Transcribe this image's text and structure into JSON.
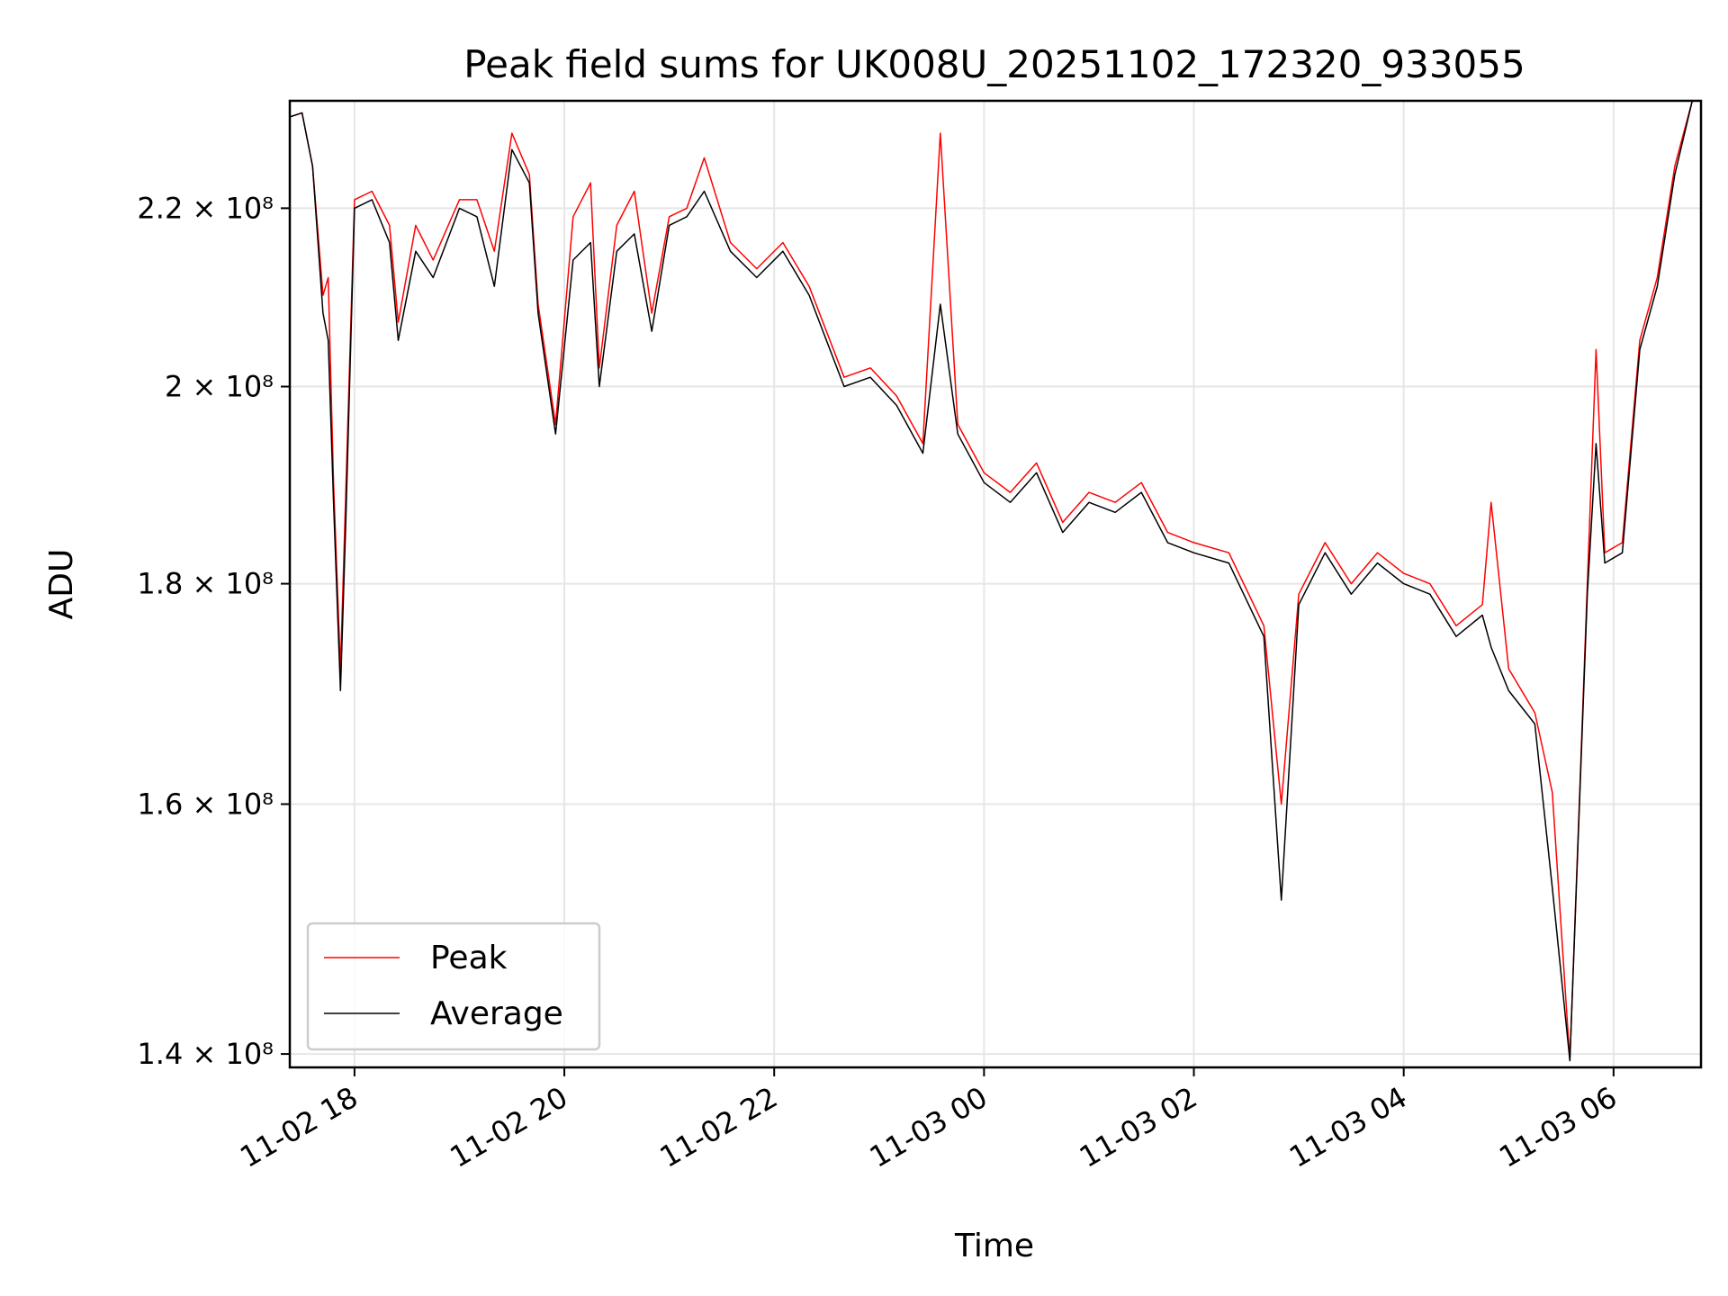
{
  "chart_data": {
    "type": "line",
    "title": "Peak field sums for UK008U_20251102_172320_933055",
    "xlabel": "Time",
    "ylabel": "ADU",
    "y_scale": "log",
    "xlim": [
      "2025-11-02 17:23",
      "2025-11-03 06:50"
    ],
    "ylim": [
      139000000,
      233000000
    ],
    "grid": true,
    "legend_position": "lower-left",
    "x_ticks": [
      {
        "value": "2025-11-02 18:00",
        "label": "11-02 18"
      },
      {
        "value": "2025-11-02 20:00",
        "label": "11-02 20"
      },
      {
        "value": "2025-11-02 22:00",
        "label": "11-02 22"
      },
      {
        "value": "2025-11-03 00:00",
        "label": "11-03 00"
      },
      {
        "value": "2025-11-03 02:00",
        "label": "11-03 02"
      },
      {
        "value": "2025-11-03 04:00",
        "label": "11-03 04"
      },
      {
        "value": "2025-11-03 06:00",
        "label": "11-03 06"
      }
    ],
    "y_ticks": [
      {
        "value": 140000000,
        "label": "1.4 × 10⁸"
      },
      {
        "value": 160000000,
        "label": "1.6 × 10⁸"
      },
      {
        "value": 180000000,
        "label": "1.8 × 10⁸"
      },
      {
        "value": 200000000,
        "label": "2 × 10⁸"
      },
      {
        "value": 220000000,
        "label": "2.2 × 10⁸"
      }
    ],
    "series": [
      {
        "name": "Peak",
        "color": "#ff0000",
        "points": [
          [
            "2025-11-02 17:23",
            231000000
          ],
          [
            "2025-11-02 17:30",
            231500000
          ],
          [
            "2025-11-02 17:36",
            225000000
          ],
          [
            "2025-11-02 17:42",
            210000000
          ],
          [
            "2025-11-02 17:45",
            212000000
          ],
          [
            "2025-11-02 17:48",
            190000000
          ],
          [
            "2025-11-02 17:52",
            172000000
          ],
          [
            "2025-11-02 17:55",
            189000000
          ],
          [
            "2025-11-02 18:00",
            221000000
          ],
          [
            "2025-11-02 18:10",
            222000000
          ],
          [
            "2025-11-02 18:20",
            218000000
          ],
          [
            "2025-11-02 18:25",
            207000000
          ],
          [
            "2025-11-02 18:35",
            218000000
          ],
          [
            "2025-11-02 18:45",
            214000000
          ],
          [
            "2025-11-02 19:00",
            221000000
          ],
          [
            "2025-11-02 19:10",
            221000000
          ],
          [
            "2025-11-02 19:20",
            215000000
          ],
          [
            "2025-11-02 19:30",
            229000000
          ],
          [
            "2025-11-02 19:40",
            224000000
          ],
          [
            "2025-11-02 19:45",
            209000000
          ],
          [
            "2025-11-02 19:55",
            196000000
          ],
          [
            "2025-11-02 20:05",
            219000000
          ],
          [
            "2025-11-02 20:15",
            223000000
          ],
          [
            "2025-11-02 20:20",
            202000000
          ],
          [
            "2025-11-02 20:30",
            218000000
          ],
          [
            "2025-11-02 20:40",
            222000000
          ],
          [
            "2025-11-02 20:50",
            208000000
          ],
          [
            "2025-11-02 21:00",
            219000000
          ],
          [
            "2025-11-02 21:10",
            220000000
          ],
          [
            "2025-11-02 21:20",
            226000000
          ],
          [
            "2025-11-02 21:35",
            216000000
          ],
          [
            "2025-11-02 21:50",
            213000000
          ],
          [
            "2025-11-02 22:05",
            216000000
          ],
          [
            "2025-11-02 22:20",
            211000000
          ],
          [
            "2025-11-02 22:40",
            201000000
          ],
          [
            "2025-11-02 22:55",
            202000000
          ],
          [
            "2025-11-02 23:10",
            199000000
          ],
          [
            "2025-11-02 23:25",
            194000000
          ],
          [
            "2025-11-02 23:35",
            229000000
          ],
          [
            "2025-11-02 23:45",
            196000000
          ],
          [
            "2025-11-03 00:00",
            191000000
          ],
          [
            "2025-11-03 00:15",
            189000000
          ],
          [
            "2025-11-03 00:30",
            192000000
          ],
          [
            "2025-11-03 00:45",
            186000000
          ],
          [
            "2025-11-03 01:00",
            189000000
          ],
          [
            "2025-11-03 01:15",
            188000000
          ],
          [
            "2025-11-03 01:30",
            190000000
          ],
          [
            "2025-11-03 01:45",
            185000000
          ],
          [
            "2025-11-03 02:00",
            184000000
          ],
          [
            "2025-11-03 02:20",
            183000000
          ],
          [
            "2025-11-03 02:40",
            176000000
          ],
          [
            "2025-11-03 02:50",
            160000000
          ],
          [
            "2025-11-03 03:00",
            179000000
          ],
          [
            "2025-11-03 03:15",
            184000000
          ],
          [
            "2025-11-03 03:30",
            180000000
          ],
          [
            "2025-11-03 03:45",
            183000000
          ],
          [
            "2025-11-03 04:00",
            181000000
          ],
          [
            "2025-11-03 04:15",
            180000000
          ],
          [
            "2025-11-03 04:30",
            176000000
          ],
          [
            "2025-11-03 04:45",
            178000000
          ],
          [
            "2025-11-03 04:50",
            188000000
          ],
          [
            "2025-11-03 05:00",
            172000000
          ],
          [
            "2025-11-03 05:15",
            168000000
          ],
          [
            "2025-11-03 05:25",
            161000000
          ],
          [
            "2025-11-03 05:35",
            139500000
          ],
          [
            "2025-11-03 05:45",
            180000000
          ],
          [
            "2025-11-03 05:50",
            204000000
          ],
          [
            "2025-11-03 05:55",
            183000000
          ],
          [
            "2025-11-03 06:05",
            184000000
          ],
          [
            "2025-11-03 06:15",
            205000000
          ],
          [
            "2025-11-03 06:25",
            212000000
          ],
          [
            "2025-11-03 06:35",
            225000000
          ],
          [
            "2025-11-03 06:45",
            233000000
          ]
        ]
      },
      {
        "name": "Average",
        "color": "#000000",
        "points": [
          [
            "2025-11-02 17:23",
            231000000
          ],
          [
            "2025-11-02 17:30",
            231500000
          ],
          [
            "2025-11-02 17:36",
            225000000
          ],
          [
            "2025-11-02 17:42",
            208000000
          ],
          [
            "2025-11-02 17:45",
            205000000
          ],
          [
            "2025-11-02 17:48",
            188000000
          ],
          [
            "2025-11-02 17:52",
            170000000
          ],
          [
            "2025-11-02 17:55",
            186000000
          ],
          [
            "2025-11-02 18:00",
            220000000
          ],
          [
            "2025-11-02 18:10",
            221000000
          ],
          [
            "2025-11-02 18:20",
            216000000
          ],
          [
            "2025-11-02 18:25",
            205000000
          ],
          [
            "2025-11-02 18:35",
            215000000
          ],
          [
            "2025-11-02 18:45",
            212000000
          ],
          [
            "2025-11-02 19:00",
            220000000
          ],
          [
            "2025-11-02 19:10",
            219000000
          ],
          [
            "2025-11-02 19:20",
            211000000
          ],
          [
            "2025-11-02 19:30",
            227000000
          ],
          [
            "2025-11-02 19:40",
            223000000
          ],
          [
            "2025-11-02 19:45",
            208000000
          ],
          [
            "2025-11-02 19:55",
            195000000
          ],
          [
            "2025-11-02 20:05",
            214000000
          ],
          [
            "2025-11-02 20:15",
            216000000
          ],
          [
            "2025-11-02 20:20",
            200000000
          ],
          [
            "2025-11-02 20:30",
            215000000
          ],
          [
            "2025-11-02 20:40",
            217000000
          ],
          [
            "2025-11-02 20:50",
            206000000
          ],
          [
            "2025-11-02 21:00",
            218000000
          ],
          [
            "2025-11-02 21:10",
            219000000
          ],
          [
            "2025-11-02 21:20",
            222000000
          ],
          [
            "2025-11-02 21:35",
            215000000
          ],
          [
            "2025-11-02 21:50",
            212000000
          ],
          [
            "2025-11-02 22:05",
            215000000
          ],
          [
            "2025-11-02 22:20",
            210000000
          ],
          [
            "2025-11-02 22:40",
            200000000
          ],
          [
            "2025-11-02 22:55",
            201000000
          ],
          [
            "2025-11-02 23:10",
            198000000
          ],
          [
            "2025-11-02 23:25",
            193000000
          ],
          [
            "2025-11-02 23:35",
            209000000
          ],
          [
            "2025-11-02 23:45",
            195000000
          ],
          [
            "2025-11-03 00:00",
            190000000
          ],
          [
            "2025-11-03 00:15",
            188000000
          ],
          [
            "2025-11-03 00:30",
            191000000
          ],
          [
            "2025-11-03 00:45",
            185000000
          ],
          [
            "2025-11-03 01:00",
            188000000
          ],
          [
            "2025-11-03 01:15",
            187000000
          ],
          [
            "2025-11-03 01:30",
            189000000
          ],
          [
            "2025-11-03 01:45",
            184000000
          ],
          [
            "2025-11-03 02:00",
            183000000
          ],
          [
            "2025-11-03 02:20",
            182000000
          ],
          [
            "2025-11-03 02:40",
            175000000
          ],
          [
            "2025-11-03 02:50",
            152000000
          ],
          [
            "2025-11-03 03:00",
            178000000
          ],
          [
            "2025-11-03 03:15",
            183000000
          ],
          [
            "2025-11-03 03:30",
            179000000
          ],
          [
            "2025-11-03 03:45",
            182000000
          ],
          [
            "2025-11-03 04:00",
            180000000
          ],
          [
            "2025-11-03 04:15",
            179000000
          ],
          [
            "2025-11-03 04:30",
            175000000
          ],
          [
            "2025-11-03 04:45",
            177000000
          ],
          [
            "2025-11-03 04:50",
            174000000
          ],
          [
            "2025-11-03 05:00",
            170000000
          ],
          [
            "2025-11-03 05:15",
            167000000
          ],
          [
            "2025-11-03 05:25",
            153000000
          ],
          [
            "2025-11-03 05:35",
            139500000
          ],
          [
            "2025-11-03 05:45",
            179000000
          ],
          [
            "2025-11-03 05:50",
            194000000
          ],
          [
            "2025-11-03 05:55",
            182000000
          ],
          [
            "2025-11-03 06:05",
            183000000
          ],
          [
            "2025-11-03 06:15",
            204000000
          ],
          [
            "2025-11-03 06:25",
            211000000
          ],
          [
            "2025-11-03 06:35",
            224000000
          ],
          [
            "2025-11-03 06:45",
            233000000
          ]
        ]
      }
    ]
  }
}
